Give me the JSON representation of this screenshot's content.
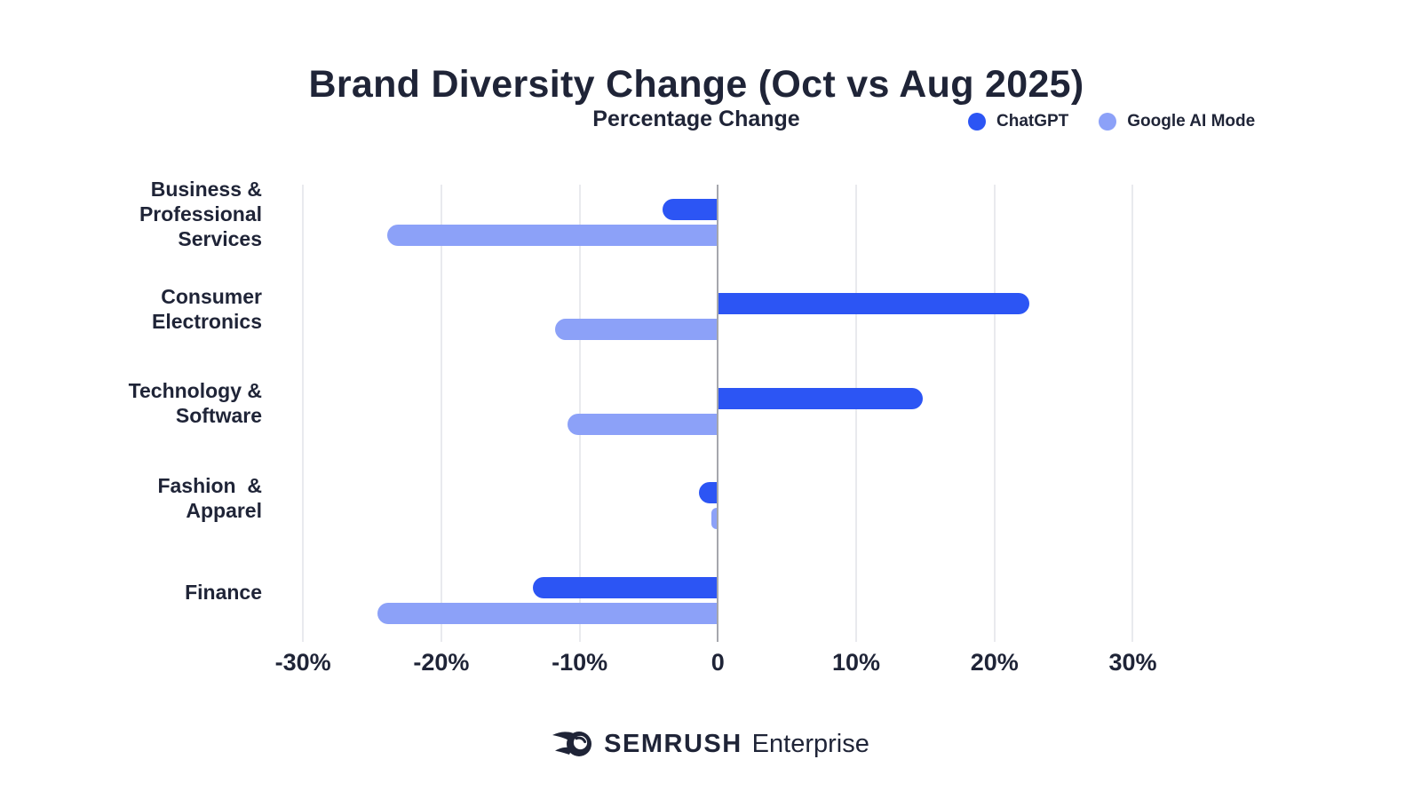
{
  "title": "Brand Diversity Change (Oct vs Aug 2025)",
  "subtitle": "Percentage Change",
  "legend": [
    {
      "label": "ChatGPT",
      "color": "#2C55F4"
    },
    {
      "label": "Google AI Mode",
      "color": "#8CA1F8"
    }
  ],
  "footer": {
    "brand": "SEMRUSH",
    "suffix": "Enterprise",
    "icon": "semrush-comet-icon"
  },
  "colors": {
    "text_dark": "#1F2437",
    "chatgpt_blue": "#2C55F4",
    "google_light_blue": "#8CA1F8",
    "gridline": "#E9EAEE",
    "zero_line": "#A6A7AD",
    "background": "#FFFFFF"
  },
  "chart_data": {
    "type": "bar",
    "orientation": "horizontal",
    "title": "Brand Diversity Change (Oct vs Aug 2025)",
    "subtitle": "Percentage Change",
    "unit": "%",
    "categories": [
      "Business & Professional Services",
      "Consumer Electronics",
      "Technology & Software",
      "Fashion  & Apparel",
      "Finance"
    ],
    "category_lines": [
      [
        "Business &",
        "Professional",
        "Services"
      ],
      [
        "Consumer",
        "Electronics"
      ],
      [
        "Technology &",
        "Software"
      ],
      [
        "Fashion  &",
        "Apparel"
      ],
      [
        "Finance"
      ]
    ],
    "series": [
      {
        "name": "ChatGPT",
        "color": "#2C55F4",
        "values": [
          -4.0,
          22.5,
          14.8,
          -1.4,
          -13.4
        ]
      },
      {
        "name": "Google AI Mode",
        "color": "#8CA1F8",
        "values": [
          -23.9,
          -11.8,
          -10.9,
          -0.5,
          -24.6
        ]
      }
    ],
    "x_ticks": [
      {
        "value": -30,
        "label": "-30%"
      },
      {
        "value": -20,
        "label": "-20%"
      },
      {
        "value": -10,
        "label": "-10%"
      },
      {
        "value": 0,
        "label": "0"
      },
      {
        "value": 10,
        "label": "10%"
      },
      {
        "value": 20,
        "label": "20%"
      },
      {
        "value": 30,
        "label": "30%"
      }
    ],
    "xlim": [
      -32,
      33.5
    ],
    "grid": "vertical",
    "legend_position": "top-right"
  }
}
